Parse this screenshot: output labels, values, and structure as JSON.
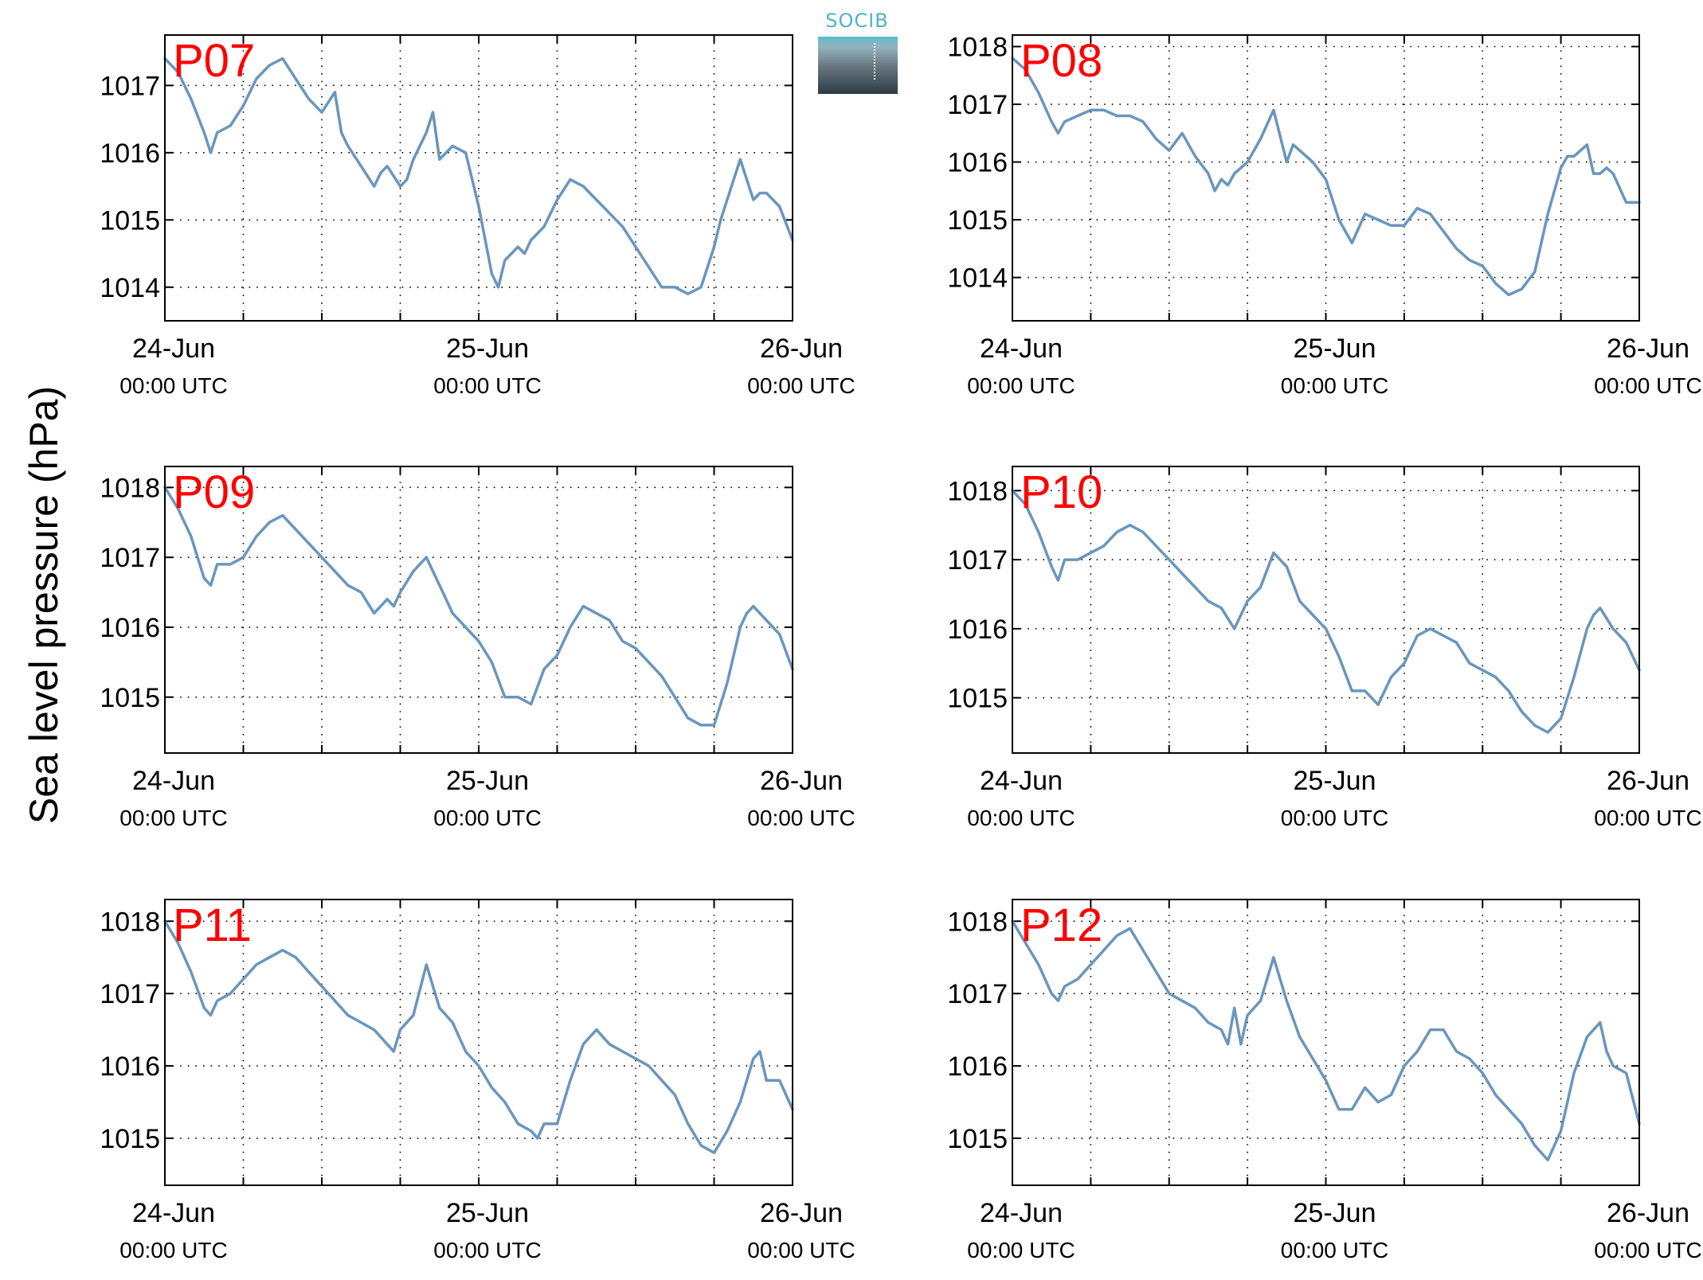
{
  "figure": {
    "ylabel": "Sea level pressure (hPa)",
    "logo_text": "SOCIB"
  },
  "colors": {
    "line": "#6a96bd",
    "label": "#ff0000",
    "axis": "#000000"
  },
  "chart_data": [
    {
      "type": "line",
      "title": "P07",
      "ylim": [
        1013.5,
        1017.75
      ],
      "yticks": [
        1014,
        1015,
        1016,
        1017
      ],
      "xlim": [
        0,
        48
      ],
      "xticks_major": [
        0,
        24,
        48
      ],
      "grid": true,
      "xtick_labels": [
        [
          "24-Jun",
          "00:00 UTC"
        ],
        [
          "25-Jun",
          "00:00 UTC"
        ],
        [
          "26-Jun",
          "00:00 UTC"
        ]
      ],
      "x": [
        0,
        1,
        2,
        3,
        3.5,
        4,
        5,
        6,
        7,
        8,
        9,
        10,
        11,
        12,
        13,
        13.5,
        14,
        15,
        16,
        16.5,
        17,
        18,
        18.5,
        19,
        20,
        20.5,
        21,
        22,
        23,
        23.5,
        24,
        25,
        25.5,
        26,
        27,
        27.5,
        28,
        29,
        30,
        31,
        32,
        33,
        34,
        35,
        36,
        37,
        38,
        39,
        40,
        41,
        42,
        42.5,
        43,
        44,
        45,
        45.5,
        46,
        47,
        48
      ],
      "values": [
        1017.4,
        1017.2,
        1016.8,
        1016.3,
        1016.0,
        1016.3,
        1016.4,
        1016.7,
        1017.1,
        1017.3,
        1017.4,
        1017.1,
        1016.8,
        1016.6,
        1016.9,
        1016.3,
        1016.1,
        1015.8,
        1015.5,
        1015.7,
        1015.8,
        1015.5,
        1015.6,
        1015.9,
        1016.3,
        1016.6,
        1015.9,
        1016.1,
        1016.0,
        1015.6,
        1015.2,
        1014.2,
        1014.0,
        1014.4,
        1014.6,
        1014.5,
        1014.7,
        1014.9,
        1015.3,
        1015.6,
        1015.5,
        1015.3,
        1015.1,
        1014.9,
        1014.6,
        1014.3,
        1014.0,
        1014.0,
        1013.9,
        1014.0,
        1014.6,
        1015.0,
        1015.3,
        1015.9,
        1015.3,
        1015.4,
        1015.4,
        1015.2,
        1014.7
      ]
    },
    {
      "type": "line",
      "title": "P08",
      "ylim": [
        1013.25,
        1018.2
      ],
      "yticks": [
        1014,
        1015,
        1016,
        1017,
        1018
      ],
      "xlim": [
        0,
        48
      ],
      "xticks_major": [
        0,
        24,
        48
      ],
      "grid": true,
      "xtick_labels": [
        [
          "24-Jun",
          "00:00 UTC"
        ],
        [
          "25-Jun",
          "00:00 UTC"
        ],
        [
          "26-Jun",
          "00:00 UTC"
        ]
      ],
      "x": [
        0,
        1,
        2,
        3,
        3.5,
        4,
        5,
        6,
        7,
        8,
        9,
        10,
        11,
        12,
        13,
        14,
        15,
        15.5,
        16,
        16.5,
        17,
        18,
        19,
        20,
        21,
        21.5,
        22,
        23,
        24,
        25,
        26,
        27,
        28,
        29,
        30,
        31,
        32,
        33,
        34,
        35,
        36,
        37,
        38,
        39,
        40,
        41,
        42,
        42.5,
        43,
        44,
        44.5,
        45,
        45.5,
        46,
        47,
        48
      ],
      "values": [
        1017.8,
        1017.6,
        1017.2,
        1016.7,
        1016.5,
        1016.7,
        1016.8,
        1016.9,
        1016.9,
        1016.8,
        1016.8,
        1016.7,
        1016.4,
        1016.2,
        1016.5,
        1016.1,
        1015.8,
        1015.5,
        1015.7,
        1015.6,
        1015.8,
        1016.0,
        1016.4,
        1016.9,
        1016.0,
        1016.3,
        1016.2,
        1016.0,
        1015.7,
        1015.0,
        1014.6,
        1015.1,
        1015.0,
        1014.9,
        1014.9,
        1015.2,
        1015.1,
        1014.8,
        1014.5,
        1014.3,
        1014.2,
        1013.9,
        1013.7,
        1013.8,
        1014.1,
        1015.1,
        1015.9,
        1016.1,
        1016.1,
        1016.3,
        1015.8,
        1015.8,
        1015.9,
        1015.8,
        1015.3,
        1015.3
      ]
    },
    {
      "type": "line",
      "title": "P09",
      "ylim": [
        1014.2,
        1018.3
      ],
      "yticks": [
        1015,
        1016,
        1017,
        1018
      ],
      "xlim": [
        0,
        48
      ],
      "xticks_major": [
        0,
        24,
        48
      ],
      "grid": true,
      "xtick_labels": [
        [
          "24-Jun",
          "00:00 UTC"
        ],
        [
          "25-Jun",
          "00:00 UTC"
        ],
        [
          "26-Jun",
          "00:00 UTC"
        ]
      ],
      "x": [
        0,
        1,
        2,
        3,
        3.5,
        4,
        5,
        6,
        7,
        8,
        9,
        10,
        11,
        12,
        13,
        14,
        15,
        16,
        17,
        17.5,
        18,
        19,
        20,
        21,
        22,
        23,
        24,
        25,
        26,
        27,
        28,
        29,
        30,
        31,
        32,
        33,
        34,
        35,
        36,
        37,
        38,
        39,
        40,
        41,
        42,
        43,
        44,
        44.5,
        45,
        46,
        47,
        48
      ],
      "values": [
        1018.0,
        1017.7,
        1017.3,
        1016.7,
        1016.6,
        1016.9,
        1016.9,
        1017.0,
        1017.3,
        1017.5,
        1017.6,
        1017.4,
        1017.2,
        1017.0,
        1016.8,
        1016.6,
        1016.5,
        1016.2,
        1016.4,
        1016.3,
        1016.5,
        1016.8,
        1017.0,
        1016.6,
        1016.2,
        1016.0,
        1015.8,
        1015.5,
        1015.0,
        1015.0,
        1014.9,
        1015.4,
        1015.6,
        1016.0,
        1016.3,
        1016.2,
        1016.1,
        1015.8,
        1015.7,
        1015.5,
        1015.3,
        1015.0,
        1014.7,
        1014.6,
        1014.6,
        1015.2,
        1016.0,
        1016.2,
        1016.3,
        1016.1,
        1015.9,
        1015.4
      ]
    },
    {
      "type": "line",
      "title": "P10",
      "ylim": [
        1014.2,
        1018.35
      ],
      "yticks": [
        1015,
        1016,
        1017,
        1018
      ],
      "xlim": [
        0,
        48
      ],
      "xticks_major": [
        0,
        24,
        48
      ],
      "grid": true,
      "xtick_labels": [
        [
          "24-Jun",
          "00:00 UTC"
        ],
        [
          "25-Jun",
          "00:00 UTC"
        ],
        [
          "26-Jun",
          "00:00 UTC"
        ]
      ],
      "x": [
        0,
        1,
        2,
        3,
        3.5,
        4,
        5,
        6,
        7,
        8,
        9,
        10,
        11,
        12,
        13,
        14,
        15,
        16,
        17,
        17.5,
        18,
        19,
        20,
        21,
        22,
        23,
        24,
        25,
        26,
        27,
        28,
        29,
        30,
        31,
        32,
        33,
        34,
        35,
        36,
        37,
        38,
        39,
        40,
        41,
        42,
        43,
        44,
        44.5,
        45,
        46,
        47,
        48
      ],
      "values": [
        1018.0,
        1017.8,
        1017.4,
        1016.9,
        1016.7,
        1017.0,
        1017.0,
        1017.1,
        1017.2,
        1017.4,
        1017.5,
        1017.4,
        1017.2,
        1017.0,
        1016.8,
        1016.6,
        1016.4,
        1016.3,
        1016.0,
        1016.2,
        1016.4,
        1016.6,
        1017.1,
        1016.9,
        1016.4,
        1016.2,
        1016.0,
        1015.6,
        1015.1,
        1015.1,
        1014.9,
        1015.3,
        1015.5,
        1015.9,
        1016.0,
        1015.9,
        1015.8,
        1015.5,
        1015.4,
        1015.3,
        1015.1,
        1014.8,
        1014.6,
        1014.5,
        1014.7,
        1015.3,
        1016.0,
        1016.2,
        1016.3,
        1016.0,
        1015.8,
        1015.4
      ]
    },
    {
      "type": "line",
      "title": "P11",
      "ylim": [
        1014.35,
        1018.3
      ],
      "yticks": [
        1015,
        1016,
        1017,
        1018
      ],
      "xlim": [
        0,
        48
      ],
      "xticks_major": [
        0,
        24,
        48
      ],
      "grid": true,
      "xtick_labels": [
        [
          "24-Jun",
          "00:00 UTC"
        ],
        [
          "25-Jun",
          "00:00 UTC"
        ],
        [
          "26-Jun",
          "00:00 UTC"
        ]
      ],
      "x": [
        0,
        1,
        2,
        3,
        3.5,
        4,
        5,
        6,
        7,
        8,
        9,
        10,
        11,
        12,
        13,
        14,
        15,
        16,
        17,
        17.5,
        18,
        19,
        20,
        21,
        22,
        23,
        24,
        25,
        26,
        27,
        28,
        28.5,
        29,
        30,
        31,
        32,
        33,
        34,
        35,
        36,
        37,
        38,
        39,
        40,
        41,
        42,
        43,
        44,
        45,
        45.5,
        46,
        47,
        48
      ],
      "values": [
        1018.0,
        1017.7,
        1017.3,
        1016.8,
        1016.7,
        1016.9,
        1017.0,
        1017.2,
        1017.4,
        1017.5,
        1017.6,
        1017.5,
        1017.3,
        1017.1,
        1016.9,
        1016.7,
        1016.6,
        1016.5,
        1016.3,
        1016.2,
        1016.5,
        1016.7,
        1017.4,
        1016.8,
        1016.6,
        1016.2,
        1016.0,
        1015.7,
        1015.5,
        1015.2,
        1015.1,
        1015.0,
        1015.2,
        1015.2,
        1015.8,
        1016.3,
        1016.5,
        1016.3,
        1016.2,
        1016.1,
        1016.0,
        1015.8,
        1015.6,
        1015.2,
        1014.9,
        1014.8,
        1015.1,
        1015.5,
        1016.1,
        1016.2,
        1015.8,
        1015.8,
        1015.4
      ]
    },
    {
      "type": "line",
      "title": "P12",
      "ylim": [
        1014.35,
        1018.3
      ],
      "yticks": [
        1015,
        1016,
        1017,
        1018
      ],
      "xlim": [
        0,
        48
      ],
      "xticks_major": [
        0,
        24,
        48
      ],
      "grid": true,
      "xtick_labels": [
        [
          "24-Jun",
          "00:00 UTC"
        ],
        [
          "25-Jun",
          "00:00 UTC"
        ],
        [
          "26-Jun",
          "00:00 UTC"
        ]
      ],
      "x": [
        0,
        1,
        2,
        3,
        3.5,
        4,
        5,
        6,
        7,
        8,
        9,
        10,
        11,
        12,
        13,
        14,
        15,
        16,
        16.5,
        17,
        17.5,
        18,
        19,
        20,
        21,
        22,
        23,
        24,
        25,
        26,
        27,
        28,
        29,
        30,
        31,
        32,
        33,
        34,
        35,
        36,
        37,
        38,
        39,
        40,
        41,
        42,
        43,
        44,
        45,
        45.5,
        46,
        47,
        48
      ],
      "values": [
        1018.0,
        1017.7,
        1017.4,
        1017.0,
        1016.9,
        1017.1,
        1017.2,
        1017.4,
        1017.6,
        1017.8,
        1017.9,
        1017.6,
        1017.3,
        1017.0,
        1016.9,
        1016.8,
        1016.6,
        1016.5,
        1016.3,
        1016.8,
        1016.3,
        1016.7,
        1016.9,
        1017.5,
        1016.9,
        1016.4,
        1016.1,
        1015.8,
        1015.4,
        1015.4,
        1015.7,
        1015.5,
        1015.6,
        1016.0,
        1016.2,
        1016.5,
        1016.5,
        1016.2,
        1016.1,
        1015.9,
        1015.6,
        1015.4,
        1015.2,
        1014.9,
        1014.7,
        1015.1,
        1015.9,
        1016.4,
        1016.6,
        1016.2,
        1016.0,
        1015.9,
        1015.2
      ]
    }
  ]
}
